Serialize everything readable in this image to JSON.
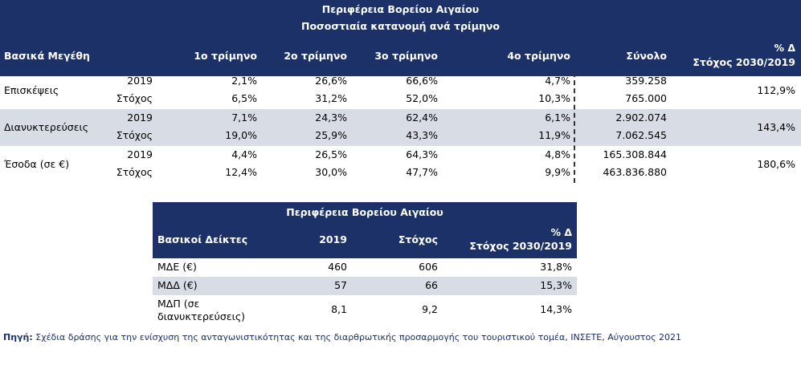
{
  "table1": {
    "title": "Περιφέρεια Βορείου Αιγαίου",
    "subtitle": "Ποσοστιαία κατανομή ανά τρίμηνο",
    "headers": [
      "Βασικά Μεγέθη",
      "1ο τρίμηνο",
      "2ο τρίμηνο",
      "3ο τρίμηνο",
      "4ο τρίμηνο",
      "Σύνολο"
    ],
    "change_header": [
      "% Δ",
      "Στόχος 2030/2019"
    ],
    "groups": [
      {
        "label": "Επισκέψεις",
        "change": "112,9%",
        "rows": [
          {
            "label": "2019",
            "cells": [
              "2,1%",
              "26,6%",
              "66,6%",
              "4,7%",
              "359.258"
            ]
          },
          {
            "label": "Στόχος",
            "cells": [
              "6,5%",
              "31,2%",
              "52,0%",
              "10,3%",
              "765.000"
            ]
          }
        ]
      },
      {
        "label": "Διανυκτερεύσεις",
        "change": "143,4%",
        "rows": [
          {
            "label": "2019",
            "cells": [
              "7,1%",
              "24,3%",
              "62,4%",
              "6,1%",
              "2.902.074"
            ]
          },
          {
            "label": "Στόχος",
            "cells": [
              "19,0%",
              "25,9%",
              "43,3%",
              "11,9%",
              "7.062.545"
            ]
          }
        ]
      },
      {
        "label": "Έσοδα (σε €)",
        "change": "180,6%",
        "rows": [
          {
            "label": "2019",
            "cells": [
              "4,4%",
              "26,5%",
              "64,3%",
              "4,8%",
              "165.308.844"
            ]
          },
          {
            "label": "Στόχος",
            "cells": [
              "12,4%",
              "30,0%",
              "47,7%",
              "9,9%",
              "463.836.880"
            ]
          }
        ]
      }
    ]
  },
  "table2": {
    "title": "Περιφέρεια Βορείου Αιγαίου",
    "headers": [
      "Βασικοί Δείκτες",
      "2019",
      "Στόχος"
    ],
    "change_header": [
      "% Δ",
      "Στόχος 2030/2019"
    ],
    "rows": [
      [
        "ΜΔΕ (€)",
        "460",
        "606",
        "31,8%"
      ],
      [
        "ΜΔΔ (€)",
        "57",
        "66",
        "15,3%"
      ],
      [
        "ΜΔΠ (σε διανυκτερεύσεις)",
        "8,1",
        "9,2",
        "14,3%"
      ]
    ]
  },
  "footer": {
    "source_label": "Πηγή:",
    "source_text": " Σχέδια δράσης για την ενίσχυση της ανταγωνιστικότητας και της διαρθρωτικής προσαρμογής του τουριστικού τομέα, ΙΝΣΕΤΕ, Αύγουστος 2021"
  }
}
